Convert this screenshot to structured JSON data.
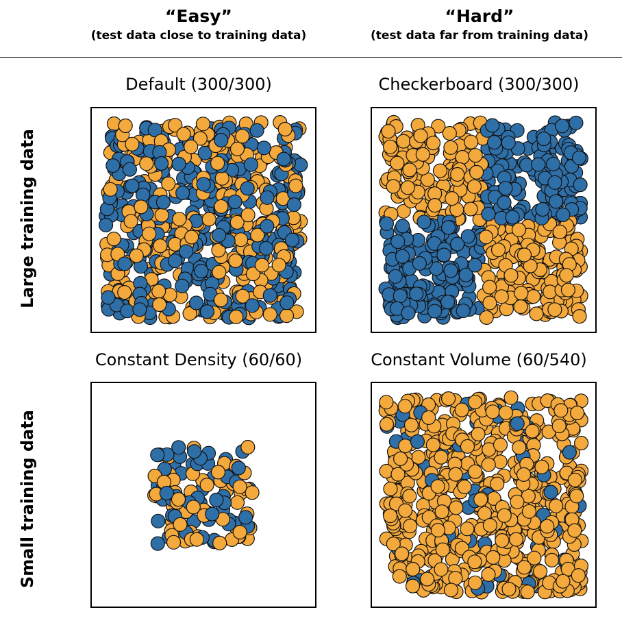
{
  "columns": {
    "easy": {
      "title": "“Easy”",
      "subtitle": "(test data close to training data)"
    },
    "hard": {
      "title": "“Hard”",
      "subtitle": "(test data far from training data)"
    }
  },
  "rows": {
    "large": "Large training data",
    "small": "Small training data"
  },
  "colors": {
    "orange": "#F4A93D",
    "blue": "#2F6FA8",
    "edge": "#111111"
  },
  "chart_data": [
    {
      "type": "scatter",
      "title": "Default (300/300)",
      "distribution": "uniform",
      "xlim": [
        -1,
        1
      ],
      "ylim": [
        -1,
        1
      ],
      "extent": 1.0,
      "series": [
        {
          "color": "#F4A93D",
          "count": 300
        },
        {
          "color": "#2F6FA8",
          "count": 300
        }
      ]
    },
    {
      "type": "scatter",
      "title": "Checkerboard (300/300)",
      "distribution": "checkerboard",
      "xlim": [
        -1,
        1
      ],
      "ylim": [
        -1,
        1
      ],
      "extent": 1.0,
      "series": [
        {
          "color": "#F4A93D",
          "count": 300,
          "quadrants": [
            "top-left",
            "bottom-right"
          ]
        },
        {
          "color": "#2F6FA8",
          "count": 300,
          "quadrants": [
            "top-right",
            "bottom-left"
          ]
        }
      ]
    },
    {
      "type": "scatter",
      "title": "Constant Density (60/60)",
      "distribution": "uniform",
      "xlim": [
        -1,
        1
      ],
      "ylim": [
        -1,
        1
      ],
      "extent": 0.5,
      "series": [
        {
          "color": "#F4A93D",
          "count": 60
        },
        {
          "color": "#2F6FA8",
          "count": 60
        }
      ]
    },
    {
      "type": "scatter",
      "title": "Constant Volume (60/540)",
      "distribution": "uniform",
      "xlim": [
        -1,
        1
      ],
      "ylim": [
        -1,
        1
      ],
      "extent": 1.0,
      "series": [
        {
          "color": "#2F6FA8",
          "count": 60
        },
        {
          "color": "#F4A93D",
          "count": 540
        }
      ]
    }
  ]
}
